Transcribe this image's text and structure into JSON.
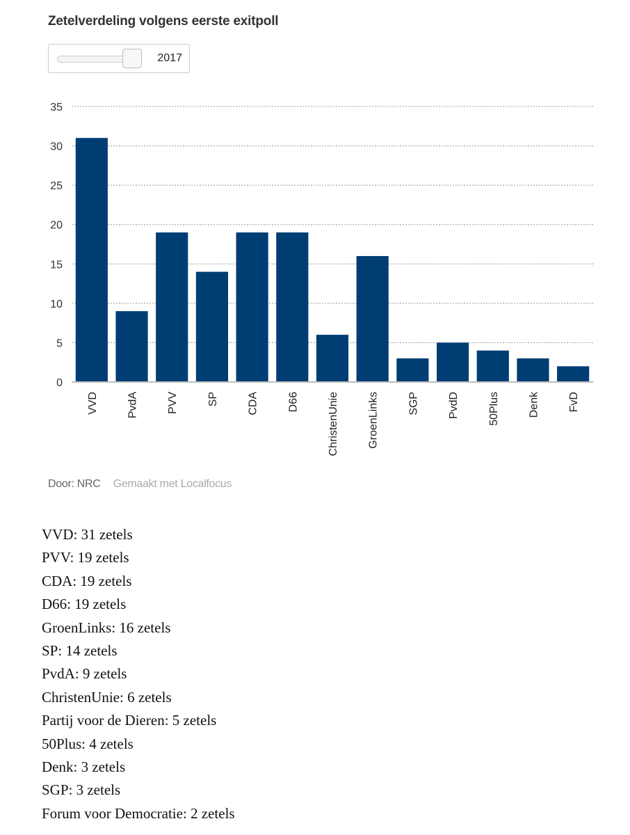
{
  "title": "Zetelverdeling volgens eerste exitpoll",
  "slider": {
    "value": "2017"
  },
  "chart_data": {
    "type": "bar",
    "title": "Zetelverdeling volgens eerste exitpoll",
    "categories": [
      "VVD",
      "PvdA",
      "PVV",
      "SP",
      "CDA",
      "D66",
      "ChristenUnie",
      "GroenLinks",
      "SGP",
      "PvdD",
      "50Plus",
      "Denk",
      "FvD"
    ],
    "values": [
      31,
      9,
      19,
      14,
      19,
      19,
      6,
      16,
      3,
      5,
      4,
      3,
      2
    ],
    "yticks": [
      "0",
      "5",
      "10",
      "15",
      "20",
      "25",
      "30",
      "35"
    ],
    "ylim": [
      0,
      35
    ],
    "xlabel": "",
    "ylabel": "",
    "grid": true,
    "color": "#003d73"
  },
  "credits": {
    "by": "Door: NRC",
    "made": "Gemaakt met Localfocus"
  },
  "list": [
    "VVD: 31 zetels",
    "PVV: 19 zetels",
    "CDA: 19 zetels",
    "D66: 19 zetels",
    "GroenLinks: 16 zetels",
    "SP: 14 zetels",
    "PvdA: 9 zetels",
    "ChristenUnie: 6 zetels",
    "Partij voor de Dieren: 5 zetels",
    "50Plus: 4 zetels",
    "Denk: 3 zetels",
    "SGP: 3 zetels",
    "Forum voor Democratie: 2 zetels"
  ]
}
